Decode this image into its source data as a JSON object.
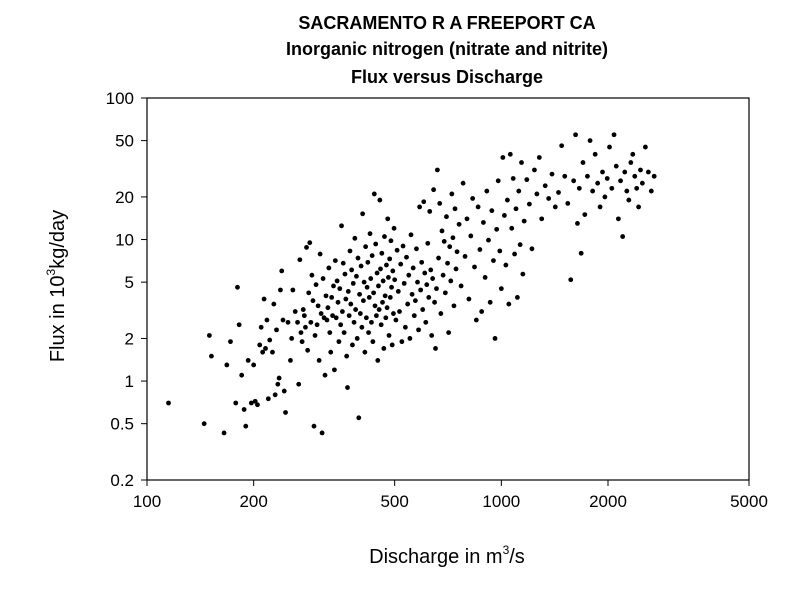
{
  "chart_data": {
    "type": "scatter",
    "title": [
      "SACRAMENTO R A FREEPORT CA",
      "Inorganic nitrogen (nitrate and nitrite)",
      "Flux versus Discharge"
    ],
    "xlabel": {
      "prefix": "Discharge in m",
      "sup": "3",
      "suffix": "/s"
    },
    "ylabel": {
      "prefix": "Flux in 10",
      "sup": "3",
      "suffix": "kg/day"
    },
    "x_scale": "log",
    "y_scale": "log",
    "xlim": [
      100,
      5000
    ],
    "ylim": [
      0.2,
      100
    ],
    "x_ticks": [
      100,
      200,
      500,
      1000,
      2000,
      5000
    ],
    "x_tick_labels": [
      "100",
      "200",
      "500",
      "1000",
      "2000",
      "5000"
    ],
    "y_ticks": [
      0.2,
      0.5,
      1,
      2,
      5,
      10,
      20,
      50,
      100
    ],
    "y_tick_labels": [
      "0.2",
      "0.5",
      "1",
      "2",
      "5",
      "10",
      "20",
      "50",
      "100"
    ],
    "grid": false,
    "marker_color": "#000000",
    "points": [
      [
        115,
        0.7
      ],
      [
        145,
        0.5
      ],
      [
        150,
        2.1
      ],
      [
        152,
        1.5
      ],
      [
        165,
        0.43
      ],
      [
        168,
        1.3
      ],
      [
        172,
        1.9
      ],
      [
        178,
        0.7
      ],
      [
        180,
        4.6
      ],
      [
        182,
        2.5
      ],
      [
        185,
        1.1
      ],
      [
        188,
        0.63
      ],
      [
        190,
        0.48
      ],
      [
        193,
        1.4
      ],
      [
        197,
        0.7
      ],
      [
        200,
        1.3
      ],
      [
        202,
        0.72
      ],
      [
        205,
        0.68
      ],
      [
        208,
        1.8
      ],
      [
        210,
        2.4
      ],
      [
        212,
        1.6
      ],
      [
        214,
        3.8
      ],
      [
        216,
        1.7
      ],
      [
        218,
        2.7
      ],
      [
        220,
        0.75
      ],
      [
        222,
        1.95
      ],
      [
        226,
        1.6
      ],
      [
        228,
        3.5
      ],
      [
        230,
        0.8
      ],
      [
        232,
        2.3
      ],
      [
        234,
        0.95
      ],
      [
        236,
        1.05
      ],
      [
        238,
        4.4
      ],
      [
        240,
        6.0
      ],
      [
        242,
        2.7
      ],
      [
        244,
        0.85
      ],
      [
        246,
        0.6
      ],
      [
        250,
        2.6
      ],
      [
        254,
        1.4
      ],
      [
        256,
        2.0
      ],
      [
        258,
        4.4
      ],
      [
        262,
        3.1
      ],
      [
        266,
        2.6
      ],
      [
        268,
        0.95
      ],
      [
        270,
        7.2
      ],
      [
        272,
        2.2
      ],
      [
        274,
        1.9
      ],
      [
        276,
        3.2
      ],
      [
        278,
        2.9
      ],
      [
        280,
        2.4
      ],
      [
        282,
        8.8
      ],
      [
        284,
        1.65
      ],
      [
        286,
        4.2
      ],
      [
        288,
        9.5
      ],
      [
        290,
        2.6
      ],
      [
        292,
        5.6
      ],
      [
        294,
        3.7
      ],
      [
        296,
        0.48
      ],
      [
        298,
        2.1
      ],
      [
        300,
        4.8
      ],
      [
        302,
        2.5
      ],
      [
        304,
        3.4
      ],
      [
        306,
        1.4
      ],
      [
        308,
        7.9
      ],
      [
        310,
        3.0
      ],
      [
        312,
        0.43
      ],
      [
        314,
        5.3
      ],
      [
        316,
        2.8
      ],
      [
        318,
        1.1
      ],
      [
        320,
        4.0
      ],
      [
        322,
        2.7
      ],
      [
        324,
        3.3
      ],
      [
        326,
        6.3
      ],
      [
        328,
        2.2
      ],
      [
        330,
        1.6
      ],
      [
        332,
        3.9
      ],
      [
        334,
        2.9
      ],
      [
        336,
        4.7
      ],
      [
        338,
        1.2
      ],
      [
        340,
        7.1
      ],
      [
        342,
        2.8
      ],
      [
        344,
        5.1
      ],
      [
        346,
        3.6
      ],
      [
        348,
        1.9
      ],
      [
        350,
        4.5
      ],
      [
        352,
        2.5
      ],
      [
        354,
        12.5
      ],
      [
        356,
        3.1
      ],
      [
        358,
        6.8
      ],
      [
        360,
        2.2
      ],
      [
        362,
        5.7
      ],
      [
        364,
        3.8
      ],
      [
        366,
        1.5
      ],
      [
        368,
        0.9
      ],
      [
        370,
        4.3
      ],
      [
        372,
        2.9
      ],
      [
        374,
        8.3
      ],
      [
        376,
        3.5
      ],
      [
        378,
        6.1
      ],
      [
        380,
        1.8
      ],
      [
        382,
        4.9
      ],
      [
        384,
        2.6
      ],
      [
        386,
        10.2
      ],
      [
        388,
        3.2
      ],
      [
        390,
        5.5
      ],
      [
        392,
        2.0
      ],
      [
        394,
        7.4
      ],
      [
        396,
        0.55
      ],
      [
        398,
        4.1
      ],
      [
        400,
        3.0
      ],
      [
        402,
        6.5
      ],
      [
        404,
        2.4
      ],
      [
        406,
        15.2
      ],
      [
        408,
        3.7
      ],
      [
        410,
        5.0
      ],
      [
        412,
        1.6
      ],
      [
        414,
        8.9
      ],
      [
        416,
        2.8
      ],
      [
        418,
        4.6
      ],
      [
        420,
        6.9
      ],
      [
        422,
        2.2
      ],
      [
        424,
        3.9
      ],
      [
        426,
        11.0
      ],
      [
        428,
        5.3
      ],
      [
        430,
        2.6
      ],
      [
        432,
        7.7
      ],
      [
        434,
        1.9
      ],
      [
        436,
        4.2
      ],
      [
        438,
        21.0
      ],
      [
        440,
        3.4
      ],
      [
        442,
        9.3
      ],
      [
        444,
        2.9
      ],
      [
        446,
        5.8
      ],
      [
        448,
        1.4
      ],
      [
        450,
        4.7
      ],
      [
        452,
        3.2
      ],
      [
        454,
        19.0
      ],
      [
        456,
        6.2
      ],
      [
        458,
        2.5
      ],
      [
        460,
        8.0
      ],
      [
        462,
        3.6
      ],
      [
        464,
        5.1
      ],
      [
        466,
        1.7
      ],
      [
        468,
        10.5
      ],
      [
        470,
        4.0
      ],
      [
        472,
        2.8
      ],
      [
        474,
        6.6
      ],
      [
        476,
        3.3
      ],
      [
        478,
        14.0
      ],
      [
        480,
        5.4
      ],
      [
        482,
        2.1
      ],
      [
        484,
        7.3
      ],
      [
        486,
        3.9
      ],
      [
        488,
        9.8
      ],
      [
        490,
        4.6
      ],
      [
        492,
        1.8
      ],
      [
        494,
        6.0
      ],
      [
        496,
        3.0
      ],
      [
        498,
        12.0
      ],
      [
        500,
        5.2
      ],
      [
        504,
        2.7
      ],
      [
        508,
        8.4
      ],
      [
        512,
        4.3
      ],
      [
        516,
        3.1
      ],
      [
        520,
        6.7
      ],
      [
        524,
        1.9
      ],
      [
        528,
        9.0
      ],
      [
        532,
        4.9
      ],
      [
        536,
        2.4
      ],
      [
        540,
        7.5
      ],
      [
        544,
        3.5
      ],
      [
        548,
        5.6
      ],
      [
        552,
        2.0
      ],
      [
        556,
        10.8
      ],
      [
        560,
        4.1
      ],
      [
        564,
        6.3
      ],
      [
        568,
        2.9
      ],
      [
        572,
        3.7
      ],
      [
        576,
        8.6
      ],
      [
        580,
        5.0
      ],
      [
        584,
        2.3
      ],
      [
        588,
        17.0
      ],
      [
        592,
        4.4
      ],
      [
        596,
        6.9
      ],
      [
        600,
        3.2
      ],
      [
        604,
        18.5
      ],
      [
        608,
        5.8
      ],
      [
        612,
        2.6
      ],
      [
        616,
        4.8
      ],
      [
        620,
        9.4
      ],
      [
        624,
        3.9
      ],
      [
        628,
        15.8
      ],
      [
        632,
        6.1
      ],
      [
        636,
        2.1
      ],
      [
        640,
        5.3
      ],
      [
        644,
        22.5
      ],
      [
        648,
        3.6
      ],
      [
        652,
        1.7
      ],
      [
        656,
        4.5
      ],
      [
        660,
        31.0
      ],
      [
        665,
        7.4
      ],
      [
        670,
        18.0
      ],
      [
        675,
        3.0
      ],
      [
        680,
        11.5
      ],
      [
        685,
        5.6
      ],
      [
        690,
        9.7
      ],
      [
        695,
        4.2
      ],
      [
        700,
        14.5
      ],
      [
        705,
        6.8
      ],
      [
        710,
        2.2
      ],
      [
        715,
        8.9
      ],
      [
        720,
        5.1
      ],
      [
        725,
        21.0
      ],
      [
        730,
        10.3
      ],
      [
        735,
        3.4
      ],
      [
        740,
        16.5
      ],
      [
        745,
        6.2
      ],
      [
        750,
        8.2
      ],
      [
        760,
        12.8
      ],
      [
        770,
        4.7
      ],
      [
        780,
        25.0
      ],
      [
        790,
        7.6
      ],
      [
        800,
        14.0
      ],
      [
        810,
        3.8
      ],
      [
        820,
        10.6
      ],
      [
        830,
        19.5
      ],
      [
        840,
        6.4
      ],
      [
        850,
        2.7
      ],
      [
        860,
        17.0
      ],
      [
        870,
        8.5
      ],
      [
        880,
        3.1
      ],
      [
        890,
        13.2
      ],
      [
        900,
        5.4
      ],
      [
        910,
        22.0
      ],
      [
        920,
        9.9
      ],
      [
        930,
        3.6
      ],
      [
        940,
        16.0
      ],
      [
        950,
        7.1
      ],
      [
        960,
        2.0
      ],
      [
        970,
        11.8
      ],
      [
        980,
        26.0
      ],
      [
        990,
        8.3
      ],
      [
        1000,
        4.5
      ],
      [
        1010,
        38.0
      ],
      [
        1020,
        14.8
      ],
      [
        1030,
        6.6
      ],
      [
        1040,
        19.0
      ],
      [
        1050,
        3.5
      ],
      [
        1060,
        40.0
      ],
      [
        1070,
        12.0
      ],
      [
        1080,
        27.0
      ],
      [
        1090,
        7.9
      ],
      [
        1100,
        16.5
      ],
      [
        1110,
        3.9
      ],
      [
        1120,
        22.0
      ],
      [
        1130,
        9.2
      ],
      [
        1140,
        35.0
      ],
      [
        1150,
        5.7
      ],
      [
        1160,
        13.5
      ],
      [
        1180,
        26.5
      ],
      [
        1200,
        17.8
      ],
      [
        1220,
        8.6
      ],
      [
        1240,
        31.0
      ],
      [
        1260,
        21.0
      ],
      [
        1280,
        38.0
      ],
      [
        1300,
        14.0
      ],
      [
        1330,
        24.0
      ],
      [
        1360,
        19.5
      ],
      [
        1390,
        29.0
      ],
      [
        1420,
        17.0
      ],
      [
        1450,
        21.5
      ],
      [
        1480,
        46.0
      ],
      [
        1510,
        28.0
      ],
      [
        1540,
        18.0
      ],
      [
        1570,
        5.2
      ],
      [
        1600,
        26.0
      ],
      [
        1620,
        55.0
      ],
      [
        1640,
        13.0
      ],
      [
        1660,
        23.0
      ],
      [
        1680,
        8.0
      ],
      [
        1700,
        35.0
      ],
      [
        1720,
        15.0
      ],
      [
        1750,
        28.0
      ],
      [
        1780,
        50.0
      ],
      [
        1810,
        22.0
      ],
      [
        1840,
        40.0
      ],
      [
        1870,
        25.0
      ],
      [
        1900,
        17.0
      ],
      [
        1930,
        30.0
      ],
      [
        1960,
        20.0
      ],
      [
        1990,
        27.0
      ],
      [
        2020,
        45.0
      ],
      [
        2050,
        23.0
      ],
      [
        2080,
        55.0
      ],
      [
        2110,
        33.0
      ],
      [
        2140,
        14.0
      ],
      [
        2170,
        26.0
      ],
      [
        2200,
        10.5
      ],
      [
        2230,
        30.0
      ],
      [
        2260,
        22.0
      ],
      [
        2290,
        19.0
      ],
      [
        2320,
        35.0
      ],
      [
        2350,
        40.0
      ],
      [
        2380,
        28.0
      ],
      [
        2410,
        23.0
      ],
      [
        2440,
        17.0
      ],
      [
        2470,
        31.0
      ],
      [
        2500,
        25.0
      ],
      [
        2550,
        45.0
      ],
      [
        2600,
        30.0
      ],
      [
        2650,
        22.0
      ],
      [
        2700,
        28.0
      ]
    ]
  }
}
